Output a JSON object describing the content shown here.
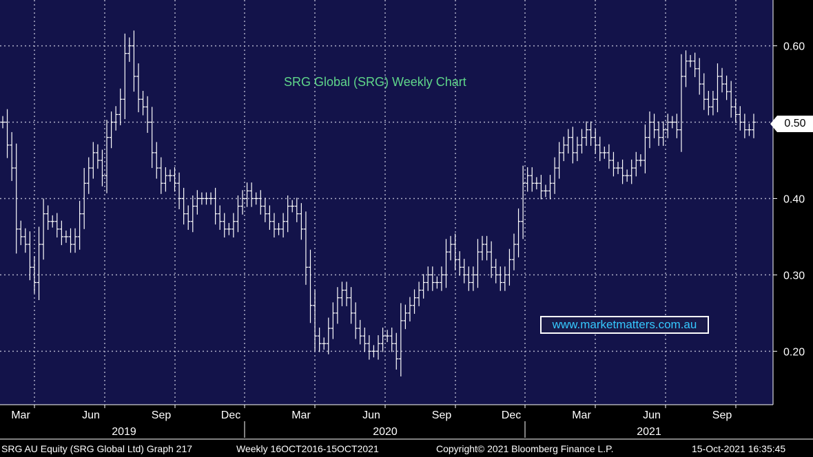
{
  "chart_data": {
    "type": "ohlc",
    "title": "SRG Global (SRG) Weekly Chart",
    "watermark": "www.marketmatters.com.au",
    "x_tick_labels": [
      "Mar",
      "Jun",
      "Sep",
      "Dec",
      "Mar",
      "Jun",
      "Sep",
      "Dec",
      "Mar",
      "Jun",
      "Sep"
    ],
    "year_labels": [
      "2019",
      "2020",
      "2021"
    ],
    "y_tick_labels": [
      "0.60",
      "0.50",
      "0.40",
      "0.30",
      "0.20"
    ],
    "y_ticks": [
      0.6,
      0.5,
      0.4,
      0.3,
      0.2
    ],
    "ylim": [
      0.13,
      0.66
    ],
    "last_price_label": "0.50",
    "last_price": 0.5,
    "grid": true,
    "colors": {
      "background": "#13134a",
      "bars": "#ffffff",
      "grid": "#b0b0c8",
      "title": "#5fd68a",
      "watermark": "#35c8ff"
    },
    "weekly_closes": [
      0.5,
      0.47,
      0.44,
      0.36,
      0.35,
      0.34,
      0.31,
      0.29,
      0.34,
      0.38,
      0.37,
      0.37,
      0.36,
      0.35,
      0.35,
      0.34,
      0.35,
      0.38,
      0.42,
      0.44,
      0.46,
      0.45,
      0.43,
      0.48,
      0.5,
      0.51,
      0.53,
      0.59,
      0.6,
      0.56,
      0.53,
      0.52,
      0.5,
      0.46,
      0.44,
      0.42,
      0.43,
      0.43,
      0.42,
      0.4,
      0.38,
      0.37,
      0.39,
      0.4,
      0.4,
      0.4,
      0.4,
      0.38,
      0.37,
      0.36,
      0.36,
      0.37,
      0.39,
      0.4,
      0.41,
      0.4,
      0.4,
      0.39,
      0.38,
      0.37,
      0.36,
      0.36,
      0.37,
      0.39,
      0.39,
      0.38,
      0.36,
      0.31,
      0.26,
      0.22,
      0.21,
      0.21,
      0.23,
      0.25,
      0.27,
      0.28,
      0.27,
      0.25,
      0.23,
      0.22,
      0.21,
      0.2,
      0.2,
      0.21,
      0.22,
      0.22,
      0.21,
      0.19,
      0.24,
      0.25,
      0.26,
      0.27,
      0.28,
      0.29,
      0.3,
      0.29,
      0.29,
      0.3,
      0.33,
      0.34,
      0.32,
      0.31,
      0.3,
      0.29,
      0.3,
      0.33,
      0.34,
      0.33,
      0.31,
      0.3,
      0.29,
      0.3,
      0.32,
      0.34,
      0.37,
      0.42,
      0.43,
      0.42,
      0.42,
      0.41,
      0.41,
      0.42,
      0.44,
      0.46,
      0.47,
      0.48,
      0.46,
      0.47,
      0.48,
      0.49,
      0.48,
      0.47,
      0.46,
      0.46,
      0.45,
      0.44,
      0.44,
      0.43,
      0.43,
      0.44,
      0.45,
      0.45,
      0.48,
      0.5,
      0.49,
      0.48,
      0.49,
      0.5,
      0.5,
      0.49,
      0.56,
      0.58,
      0.58,
      0.57,
      0.55,
      0.53,
      0.52,
      0.53,
      0.56,
      0.55,
      0.54,
      0.52,
      0.51,
      0.5,
      0.49,
      0.49,
      0.5
    ]
  },
  "footer": {
    "left": "SRG AU Equity (SRG Global Ltd) Graph 217",
    "period": "Weekly 16OCT2016-15OCT2021",
    "copyright": "Copyright© 2021 Bloomberg Finance L.P.",
    "timestamp": "15-Oct-2021 16:35:45"
  }
}
